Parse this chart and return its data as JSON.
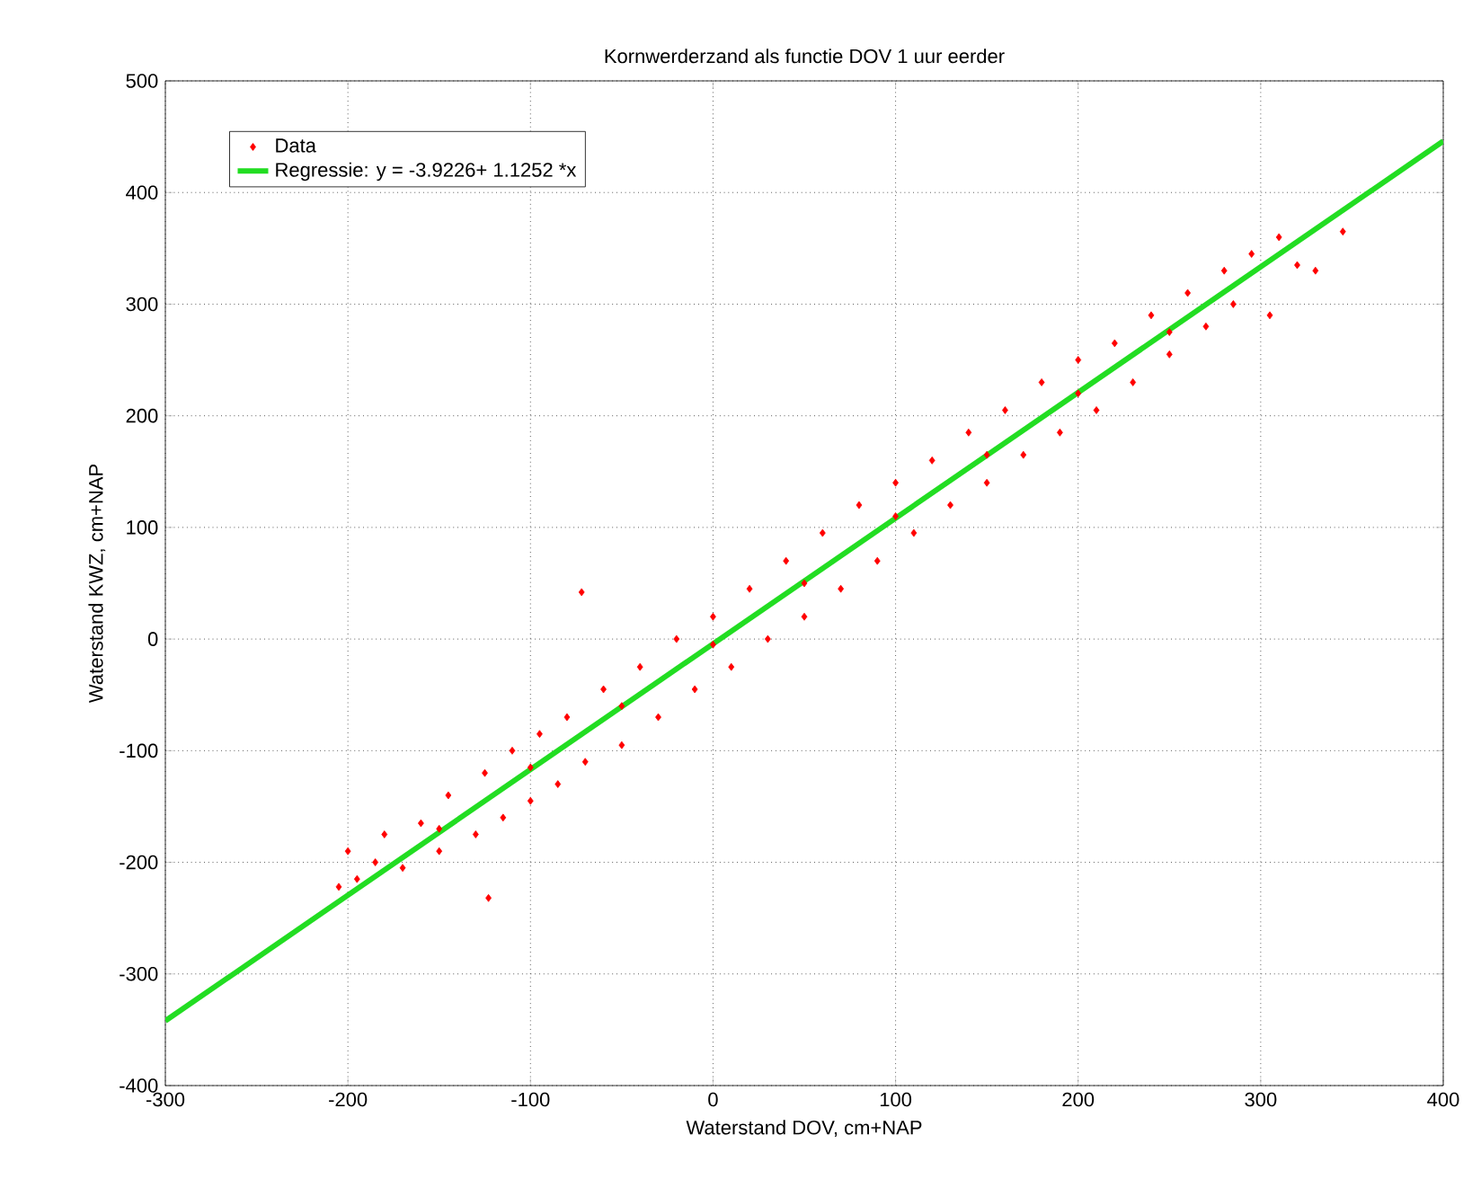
{
  "chart_data": {
    "type": "scatter",
    "title": "Kornwerderzand als functie DOV 1 uur eerder",
    "xlabel": "Waterstand DOV, cm+NAP",
    "ylabel": "Waterstand KWZ, cm+NAP",
    "xlim": [
      -300,
      400
    ],
    "ylim": [
      -400,
      500
    ],
    "xticks": [
      -300,
      -200,
      -100,
      0,
      100,
      200,
      300,
      400
    ],
    "yticks": [
      -400,
      -300,
      -200,
      -100,
      0,
      100,
      200,
      300,
      400,
      500
    ],
    "grid": true,
    "legend": "top left",
    "series": [
      {
        "name": "Data",
        "color": "#ff0000",
        "marker": "diamond",
        "x": [
          -205,
          -200,
          -195,
          -185,
          -180,
          -170,
          -160,
          -150,
          -145,
          -130,
          -125,
          -123,
          -115,
          -110,
          -100,
          -95,
          -85,
          -80,
          -72,
          -70,
          -60,
          -50,
          -40,
          -30,
          -20,
          -10,
          0,
          10,
          20,
          30,
          40,
          50,
          60,
          70,
          80,
          90,
          100,
          110,
          120,
          130,
          140,
          150,
          160,
          170,
          180,
          190,
          200,
          210,
          220,
          230,
          240,
          250,
          260,
          270,
          280,
          285,
          295,
          305,
          310,
          320,
          330,
          345,
          -150,
          -100,
          -50,
          0,
          50,
          100,
          150,
          200,
          250
        ],
        "values": [
          -222,
          -190,
          -215,
          -200,
          -175,
          -205,
          -165,
          -190,
          -140,
          -175,
          -120,
          -232,
          -160,
          -100,
          -145,
          -85,
          -130,
          -70,
          42,
          -110,
          -45,
          -95,
          -25,
          -70,
          0,
          -45,
          20,
          -25,
          45,
          0,
          70,
          20,
          95,
          45,
          120,
          70,
          140,
          95,
          160,
          120,
          185,
          140,
          205,
          165,
          230,
          185,
          250,
          205,
          265,
          230,
          290,
          255,
          310,
          280,
          330,
          300,
          345,
          290,
          360,
          335,
          330,
          365,
          -170,
          -115,
          -60,
          -5,
          50,
          110,
          165,
          220,
          275
        ]
      },
      {
        "name": "Regressie: y = -3.9226+ 1.1252 *x",
        "type": "line",
        "color": "#22dd22",
        "line_style": "solid",
        "x": [
          -300,
          400
        ],
        "values": [
          -342,
          446
        ]
      }
    ]
  }
}
